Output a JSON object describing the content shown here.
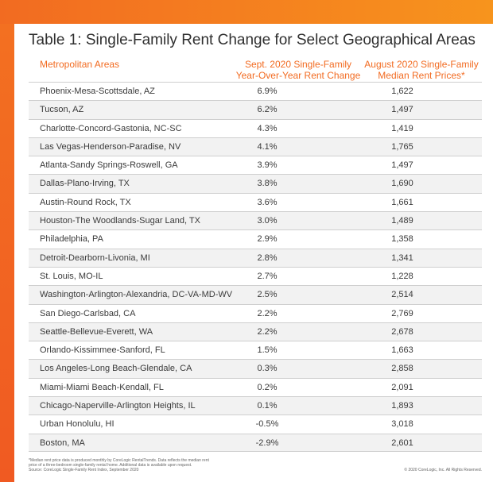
{
  "title": "Table 1: Single-Family Rent Change for Select Geographical Areas",
  "headers": {
    "area": "Metropolitan Areas",
    "change_line1": "Sept. 2020 Single-Family",
    "change_line2": "Year-Over-Year Rent Change",
    "price_line1": "August 2020 Single-Family",
    "price_line2": "Median Rent Prices*"
  },
  "rows": [
    {
      "area": "Phoenix-Mesa-Scottsdale, AZ",
      "change": "6.9%",
      "price": "1,622"
    },
    {
      "area": "Tucson, AZ",
      "change": "6.2%",
      "price": "1,497"
    },
    {
      "area": "Charlotte-Concord-Gastonia, NC-SC",
      "change": "4.3%",
      "price": "1,419"
    },
    {
      "area": "Las Vegas-Henderson-Paradise, NV",
      "change": "4.1%",
      "price": "1,765"
    },
    {
      "area": "Atlanta-Sandy Springs-Roswell, GA",
      "change": "3.9%",
      "price": "1,497"
    },
    {
      "area": "Dallas-Plano-Irving, TX",
      "change": "3.8%",
      "price": "1,690"
    },
    {
      "area": "Austin-Round Rock, TX",
      "change": "3.6%",
      "price": "1,661"
    },
    {
      "area": "Houston-The Woodlands-Sugar Land, TX",
      "change": "3.0%",
      "price": "1,489"
    },
    {
      "area": "Philadelphia, PA",
      "change": "2.9%",
      "price": "1,358"
    },
    {
      "area": "Detroit-Dearborn-Livonia, MI",
      "change": "2.8%",
      "price": "1,341"
    },
    {
      "area": "St. Louis, MO-IL",
      "change": "2.7%",
      "price": "1,228"
    },
    {
      "area": "Washington-Arlington-Alexandria, DC-VA-MD-WV",
      "change": "2.5%",
      "price": "2,514"
    },
    {
      "area": "San Diego-Carlsbad, CA",
      "change": "2.2%",
      "price": "2,769"
    },
    {
      "area": "Seattle-Bellevue-Everett, WA",
      "change": "2.2%",
      "price": "2,678"
    },
    {
      "area": "Orlando-Kissimmee-Sanford, FL",
      "change": "1.5%",
      "price": "1,663"
    },
    {
      "area": "Los Angeles-Long Beach-Glendale, CA",
      "change": "0.3%",
      "price": "2,858"
    },
    {
      "area": "Miami-Miami Beach-Kendall, FL",
      "change": "0.2%",
      "price": "2,091"
    },
    {
      "area": "Chicago-Naperville-Arlington Heights, IL",
      "change": "0.1%",
      "price": "1,893"
    },
    {
      "area": "Urban Honolulu, HI",
      "change": "-0.5%",
      "price": "3,018"
    },
    {
      "area": "Boston, MA",
      "change": "-2.9%",
      "price": "2,601"
    }
  ],
  "footnote_line1": "*Median rent price data is produced monthly by CoreLogic RentalTrends. Data reflects the median rent",
  "footnote_line2": "price of a three-bedroom single-family rental home. Additional data is available upon request.",
  "footnote_line3": "Source: CoreLogic Single-Family Rent Index, September 2020",
  "copyright": "© 2020 CoreLogic, Inc. All Rights Reserved.",
  "colors": {
    "accent": "#f26b21",
    "accent_light": "#f7941d",
    "row_stripe": "#f2f2f2"
  }
}
